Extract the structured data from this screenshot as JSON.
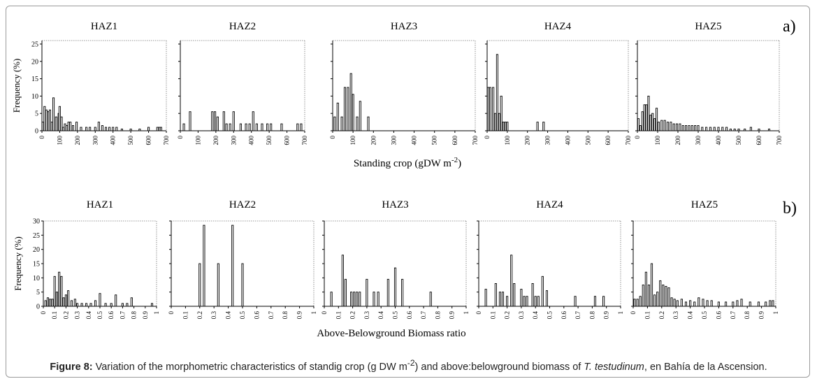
{
  "figure": {
    "panel_a_label": "a)",
    "panel_b_label": "b)",
    "panel_a_xlabel": "Standing crop (gDW m",
    "panel_a_xlabel_sup": "-2",
    "panel_a_xlabel_end": ")",
    "panel_b_xlabel": "Above-Belowground Biomass ratio",
    "caption_bold": "Figure 8:",
    "caption_pre": " Variation of the morphometric characteristics of standig crop (g DW m",
    "caption_sup": "-2",
    "caption_mid": ") and above:belowground biomass of ",
    "caption_italic": "T. testudinum",
    "caption_post": ", en Bahía de la Ascension."
  },
  "chart_data": [
    {
      "type": "bar",
      "panel": "a",
      "title": "HAZ1",
      "ylabel": "Frequency (%)",
      "xlabel": "",
      "xlim": [
        0,
        700
      ],
      "ylim": [
        0,
        26
      ],
      "xticks": [
        "0",
        "100",
        "200",
        "300",
        "400",
        "500",
        "600",
        "700"
      ],
      "yticks": [
        "0",
        "5",
        "10",
        "15",
        "20",
        "25"
      ],
      "x": [
        5,
        15,
        25,
        35,
        45,
        55,
        65,
        80,
        95,
        100,
        110,
        120,
        130,
        140,
        150,
        160,
        175,
        195,
        220,
        250,
        270,
        300,
        320,
        340,
        360,
        380,
        400,
        420,
        450,
        500,
        550,
        600,
        650,
        660,
        670
      ],
      "values": [
        2.5,
        7,
        6,
        5.5,
        6,
        2.5,
        9.5,
        4,
        5,
        7,
        4,
        1,
        2,
        1.5,
        2.5,
        2.5,
        1.5,
        2.5,
        1,
        1,
        1,
        1,
        2.5,
        1.5,
        1,
        1,
        1,
        1,
        0.5,
        0.5,
        0.5,
        1,
        1,
        1,
        1
      ]
    },
    {
      "type": "bar",
      "panel": "a",
      "title": "HAZ2",
      "ylabel": "",
      "xlabel": "",
      "xlim": [
        0,
        700
      ],
      "ylim": [
        0,
        26
      ],
      "xticks": [
        "0",
        "100",
        "200",
        "300",
        "400",
        "500",
        "600",
        "700"
      ],
      "yticks": [],
      "x": [
        20,
        55,
        180,
        195,
        210,
        245,
        260,
        280,
        300,
        340,
        370,
        390,
        410,
        430,
        460,
        490,
        510,
        570,
        660,
        680
      ],
      "values": [
        2,
        5.5,
        5.5,
        5.5,
        4,
        5.5,
        2,
        2,
        5.5,
        2,
        2,
        2,
        5.5,
        2,
        2,
        2,
        2,
        2,
        2,
        2
      ]
    },
    {
      "type": "bar",
      "panel": "a",
      "title": "HAZ3",
      "ylabel": "",
      "xlabel": "",
      "xlim": [
        0,
        700
      ],
      "ylim": [
        0,
        26
      ],
      "xticks": [
        "0",
        "100",
        "200",
        "300",
        "400",
        "500",
        "600",
        "700"
      ],
      "yticks": [],
      "x": [
        10,
        25,
        45,
        60,
        75,
        90,
        100,
        120,
        135,
        175
      ],
      "values": [
        4,
        8,
        4,
        12.5,
        12.5,
        16.5,
        10.5,
        4,
        8.5,
        4
      ]
    },
    {
      "type": "bar",
      "panel": "a",
      "title": "HAZ4",
      "ylabel": "",
      "xlabel": "",
      "xlim": [
        0,
        700
      ],
      "ylim": [
        0,
        26
      ],
      "xticks": [
        "0",
        "100",
        "200",
        "300",
        "400",
        "500",
        "600",
        "700"
      ],
      "yticks": [],
      "x": [
        5,
        15,
        30,
        40,
        50,
        60,
        70,
        80,
        90,
        100,
        250,
        280
      ],
      "values": [
        12.5,
        12.5,
        12.5,
        5,
        22,
        5,
        10,
        2.5,
        2.5,
        2.5,
        2.5,
        2.5
      ]
    },
    {
      "type": "bar",
      "panel": "a",
      "title": "HAZ5",
      "ylabel": "",
      "xlabel": "",
      "xlim": [
        0,
        700
      ],
      "ylim": [
        0,
        26
      ],
      "xticks": [
        "0",
        "100",
        "200",
        "300",
        "400",
        "500",
        "600",
        "700"
      ],
      "yticks": [],
      "x": [
        5,
        15,
        25,
        35,
        45,
        55,
        65,
        75,
        85,
        95,
        105,
        120,
        135,
        150,
        165,
        180,
        195,
        210,
        225,
        240,
        255,
        270,
        285,
        300,
        320,
        340,
        360,
        380,
        400,
        420,
        440,
        460,
        480,
        500,
        530,
        560,
        600,
        650
      ],
      "values": [
        3.5,
        1.5,
        5.5,
        7.5,
        7.5,
        10,
        4.5,
        5,
        3.5,
        6.5,
        2.5,
        3,
        3,
        2.5,
        2.5,
        2,
        2,
        2,
        1.5,
        1.5,
        1.5,
        1.5,
        1.5,
        1.5,
        1,
        1,
        1,
        1,
        1,
        1,
        1,
        0.5,
        0.5,
        0.5,
        0.5,
        1,
        0.5,
        0.5
      ]
    },
    {
      "type": "bar",
      "panel": "b",
      "title": "HAZ1",
      "ylabel": "Frequency (%)",
      "xlabel": "",
      "xlim": [
        0,
        1
      ],
      "ylim": [
        0,
        30
      ],
      "xticks": [
        "0",
        "0.1",
        "0.2",
        "0.3",
        "0.4",
        "0.5",
        "0.6",
        "0.7",
        "0.8",
        "0.9",
        "1"
      ],
      "yticks": [
        "0",
        "5",
        "10",
        "15",
        "20",
        "25",
        "30"
      ],
      "x": [
        0.02,
        0.04,
        0.06,
        0.08,
        0.1,
        0.12,
        0.14,
        0.16,
        0.18,
        0.2,
        0.22,
        0.25,
        0.28,
        0.3,
        0.34,
        0.38,
        0.42,
        0.46,
        0.5,
        0.55,
        0.6,
        0.64,
        0.7,
        0.74,
        0.78,
        0.96
      ],
      "values": [
        2,
        3,
        2.5,
        2.5,
        10.5,
        5,
        12,
        10.5,
        3,
        4,
        5.5,
        2,
        2.5,
        1,
        1,
        1,
        1,
        2,
        4.5,
        1,
        1,
        4,
        1,
        1,
        3,
        1
      ]
    },
    {
      "type": "bar",
      "panel": "b",
      "title": "HAZ2",
      "ylabel": "",
      "xlabel": "",
      "xlim": [
        0,
        1
      ],
      "ylim": [
        0,
        30
      ],
      "xticks": [
        "0",
        "0.1",
        "0.2",
        "0.3",
        "0.4",
        "0.5",
        "0.6",
        "0.7",
        "0.8",
        "0.9",
        "1"
      ],
      "yticks": [],
      "x": [
        0.2,
        0.23,
        0.33,
        0.43,
        0.5
      ],
      "values": [
        15,
        28.5,
        15,
        28.5,
        15
      ]
    },
    {
      "type": "bar",
      "panel": "b",
      "title": "HAZ3",
      "ylabel": "",
      "xlabel": "",
      "xlim": [
        0,
        1
      ],
      "ylim": [
        0,
        30
      ],
      "xticks": [
        "0",
        "0.1",
        "0.2",
        "0.3",
        "0.4",
        "0.5",
        "0.6",
        "0.7",
        "0.8",
        "0.9",
        "1"
      ],
      "yticks": [],
      "x": [
        0.05,
        0.13,
        0.15,
        0.19,
        0.21,
        0.23,
        0.25,
        0.3,
        0.35,
        0.38,
        0.45,
        0.5,
        0.55,
        0.75
      ],
      "values": [
        5,
        18,
        9.5,
        5,
        5,
        5,
        5,
        9.5,
        5,
        5,
        9.5,
        13.5,
        9.5,
        5
      ]
    },
    {
      "type": "bar",
      "panel": "b",
      "title": "HAZ4",
      "ylabel": "",
      "xlabel": "",
      "xlim": [
        0,
        1
      ],
      "ylim": [
        0,
        30
      ],
      "xticks": [
        "0",
        "0.1",
        "0.2",
        "0.3",
        "0.4",
        "0.5",
        "0.6",
        "0.7",
        "0.8",
        "0.9",
        "1"
      ],
      "yticks": [],
      "x": [
        0.05,
        0.12,
        0.15,
        0.17,
        0.2,
        0.23,
        0.25,
        0.3,
        0.32,
        0.34,
        0.38,
        0.4,
        0.42,
        0.45,
        0.48,
        0.68,
        0.82,
        0.88
      ],
      "values": [
        6,
        8,
        5,
        5,
        3.5,
        18,
        8,
        6,
        3.5,
        3.5,
        8,
        3.5,
        3.5,
        10.5,
        5.5,
        3.5,
        3.5,
        3.5
      ]
    },
    {
      "type": "bar",
      "panel": "b",
      "title": "HAZ5",
      "ylabel": "",
      "xlabel": "",
      "xlim": [
        0,
        1
      ],
      "ylim": [
        0,
        30
      ],
      "xticks": [
        "0",
        "0.1",
        "0.2",
        "0.3",
        "0.4",
        "0.5",
        "0.6",
        "0.7",
        "0.8",
        "0.9",
        "1"
      ],
      "yticks": [],
      "x": [
        0.01,
        0.03,
        0.05,
        0.07,
        0.09,
        0.11,
        0.13,
        0.15,
        0.17,
        0.19,
        0.21,
        0.23,
        0.25,
        0.27,
        0.29,
        0.31,
        0.34,
        0.37,
        0.4,
        0.43,
        0.46,
        0.49,
        0.52,
        0.55,
        0.6,
        0.65,
        0.7,
        0.73,
        0.76,
        0.82,
        0.88,
        0.93,
        0.96,
        0.98
      ],
      "values": [
        2.5,
        2.5,
        3.5,
        7.5,
        12,
        7.5,
        15,
        4,
        5,
        9,
        7.5,
        7,
        6.5,
        3,
        2.5,
        2,
        2.5,
        1.5,
        2,
        1.5,
        3,
        2.5,
        2,
        2,
        1.5,
        1.5,
        1.5,
        2,
        2.5,
        1.5,
        1.5,
        1.5,
        2,
        2
      ]
    }
  ]
}
